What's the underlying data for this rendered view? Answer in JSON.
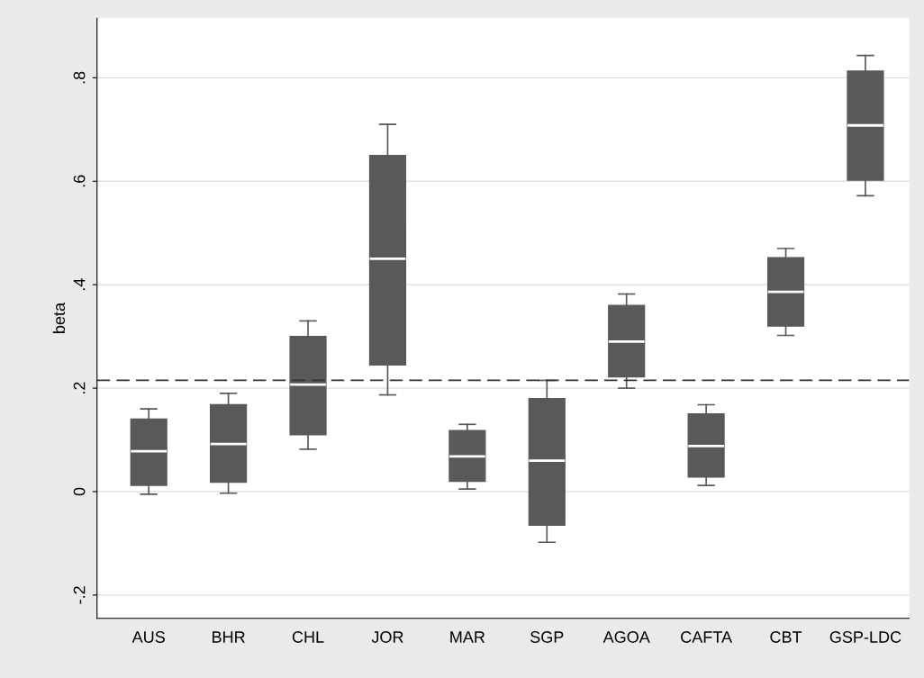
{
  "chart_data": {
    "type": "box",
    "ylabel": "beta",
    "categories": [
      "AUS",
      "BHR",
      "CHL",
      "JOR",
      "MAR",
      "SGP",
      "AGOA",
      "CAFTA",
      "CBT",
      "GSP-LDC"
    ],
    "color": "#595959",
    "boxes": [
      {
        "low": -0.005,
        "q1": 0.012,
        "median": 0.078,
        "q3": 0.14,
        "high": 0.16
      },
      {
        "low": -0.003,
        "q1": 0.018,
        "median": 0.092,
        "q3": 0.168,
        "high": 0.19
      },
      {
        "low": 0.082,
        "q1": 0.11,
        "median": 0.207,
        "q3": 0.3,
        "high": 0.33
      },
      {
        "low": 0.187,
        "q1": 0.245,
        "median": 0.45,
        "q3": 0.65,
        "high": 0.71
      },
      {
        "low": 0.005,
        "q1": 0.02,
        "median": 0.068,
        "q3": 0.118,
        "high": 0.13
      },
      {
        "low": -0.098,
        "q1": -0.065,
        "median": 0.06,
        "q3": 0.18,
        "high": 0.215
      },
      {
        "low": 0.2,
        "q1": 0.222,
        "median": 0.29,
        "q3": 0.36,
        "high": 0.382
      },
      {
        "low": 0.012,
        "q1": 0.028,
        "median": 0.088,
        "q3": 0.15,
        "high": 0.168
      },
      {
        "low": 0.302,
        "q1": 0.32,
        "median": 0.386,
        "q3": 0.452,
        "high": 0.47
      },
      {
        "low": 0.572,
        "q1": 0.602,
        "median": 0.708,
        "q3": 0.813,
        "high": 0.843
      }
    ],
    "ylim": [
      -0.245,
      0.915
    ],
    "yticks": [
      {
        "value": -0.2,
        "label": "-.2"
      },
      {
        "value": 0,
        "label": "0"
      },
      {
        "value": 0.2,
        "label": ".2"
      },
      {
        "value": 0.4,
        "label": ".4"
      },
      {
        "value": 0.6,
        "label": ".6"
      },
      {
        "value": 0.8,
        "label": ".8"
      }
    ],
    "grid": "y",
    "ref_lines": [
      {
        "axis": "y",
        "value": 0.215,
        "color": "#333333",
        "line_style": "dashed"
      }
    ]
  }
}
